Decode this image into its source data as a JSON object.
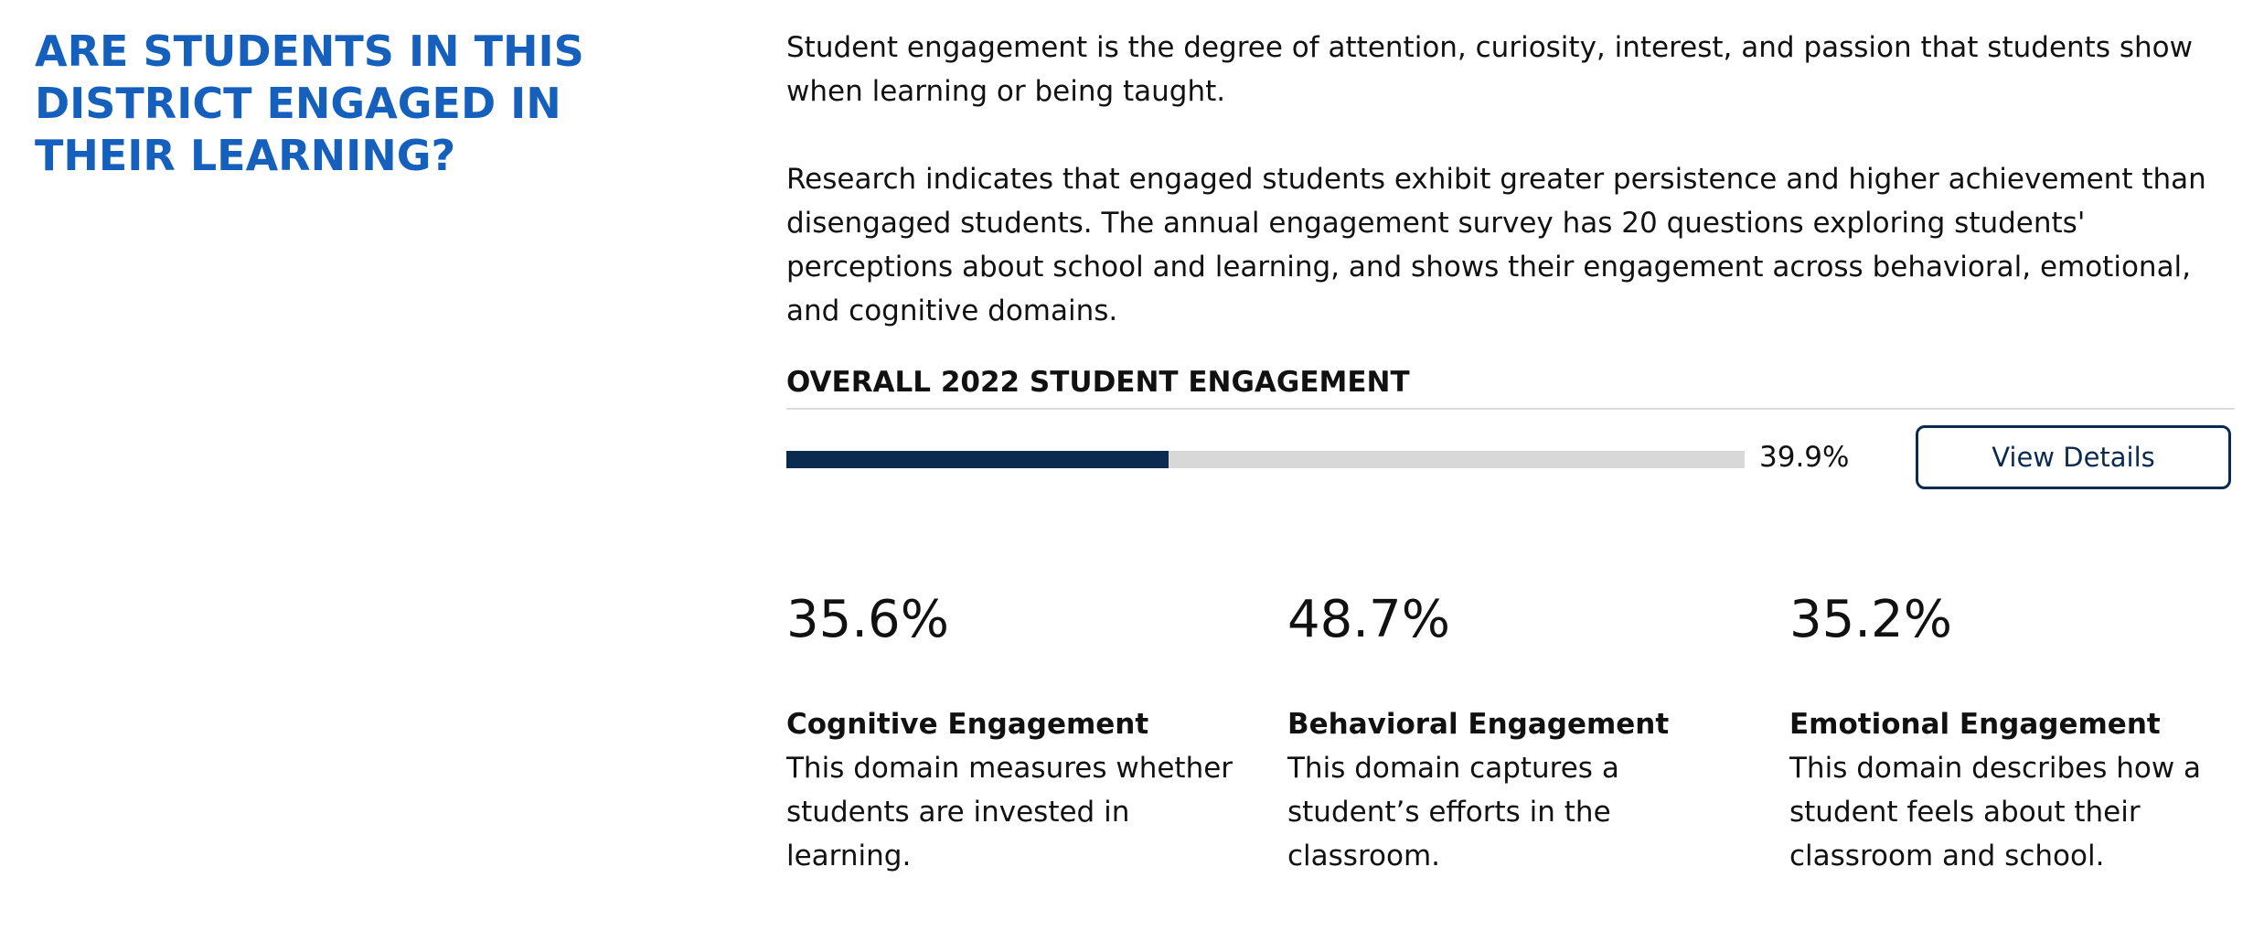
{
  "heading": "ARE STUDENTS IN THIS DISTRICT ENGAGED IN THEIR LEARNING?",
  "intro": [
    "Student engagement is the degree of attention, curiosity, interest, and passion that students show when learning or being taught.",
    "Research indicates that engaged students exhibit greater persistence and higher achievement than disengaged students. The annual engagement survey has 20 questions exploring students' perceptions about school and learning, and shows their engagement across behavioral, emotional, and cognitive domains."
  ],
  "overall": {
    "title": "OVERALL 2022 STUDENT ENGAGEMENT",
    "value": 39.9,
    "value_label": "39.9%",
    "button": "View Details"
  },
  "domains": [
    {
      "value": "35.6%",
      "title": "Cognitive Engagement",
      "description": "This domain measures whether students are invested in learning."
    },
    {
      "value": "48.7%",
      "title": "Behavioral Engagement",
      "description": "This domain captures a student’s efforts in the classroom."
    },
    {
      "value": "35.2%",
      "title": "Emotional Engagement",
      "description": "This domain describes how a student feels about their classroom and school."
    }
  ]
}
